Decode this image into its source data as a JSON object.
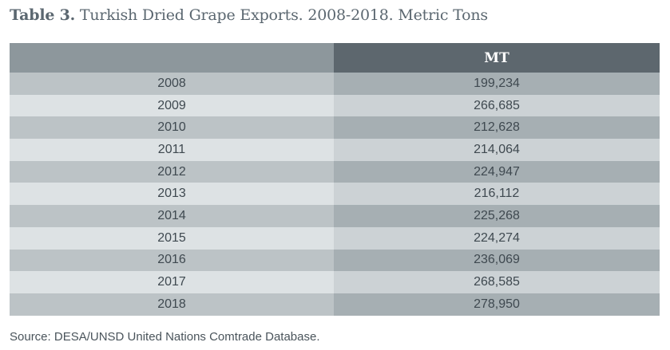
{
  "title": {
    "label": "Table 3.",
    "text": " Turkish Dried Grape Exports. 2008-2018. Metric Tons"
  },
  "table": {
    "headers": [
      "",
      "MT"
    ],
    "rows": [
      {
        "year": "2008",
        "value": "199,234"
      },
      {
        "year": "2009",
        "value": "266,685"
      },
      {
        "year": "2010",
        "value": "212,628"
      },
      {
        "year": "2011",
        "value": "214,064"
      },
      {
        "year": "2012",
        "value": "224,947"
      },
      {
        "year": "2013",
        "value": "216,112"
      },
      {
        "year": "2014",
        "value": "225,268"
      },
      {
        "year": "2015",
        "value": "224,274"
      },
      {
        "year": "2016",
        "value": "236,069"
      },
      {
        "year": "2017",
        "value": "268,585"
      },
      {
        "year": "2018",
        "value": "278,950"
      }
    ]
  },
  "source": "Source: DESA/UNSD United Nations Comtrade Database."
}
